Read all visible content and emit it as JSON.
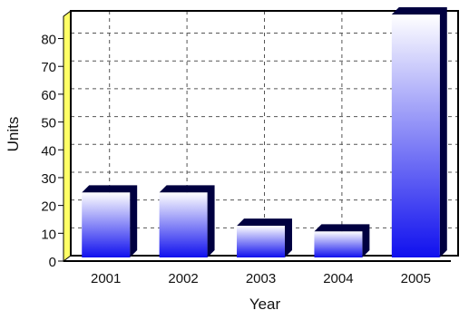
{
  "chart_data": {
    "type": "bar",
    "title": "",
    "xlabel": "Year",
    "ylabel": "Units",
    "categories": [
      "2001",
      "2002",
      "2003",
      "2004",
      "2005"
    ],
    "x_tick_labels": [
      "2001",
      "2002",
      "2003",
      "2004",
      "2005"
    ],
    "values": [
      24,
      24,
      12,
      10,
      88
    ],
    "ylim": [
      0,
      88
    ],
    "yticks": [
      0,
      10,
      20,
      30,
      40,
      50,
      60,
      70,
      80
    ],
    "grid": true,
    "grid_style": "dashed",
    "legend": "none",
    "colors": {
      "bar_top": "#ffffff",
      "bar_bottom": "#1010ee",
      "bar_shadow": "#000040",
      "plot_border": "#000000",
      "axis_side_wall": "#ffff66",
      "grid": "#555555"
    }
  }
}
